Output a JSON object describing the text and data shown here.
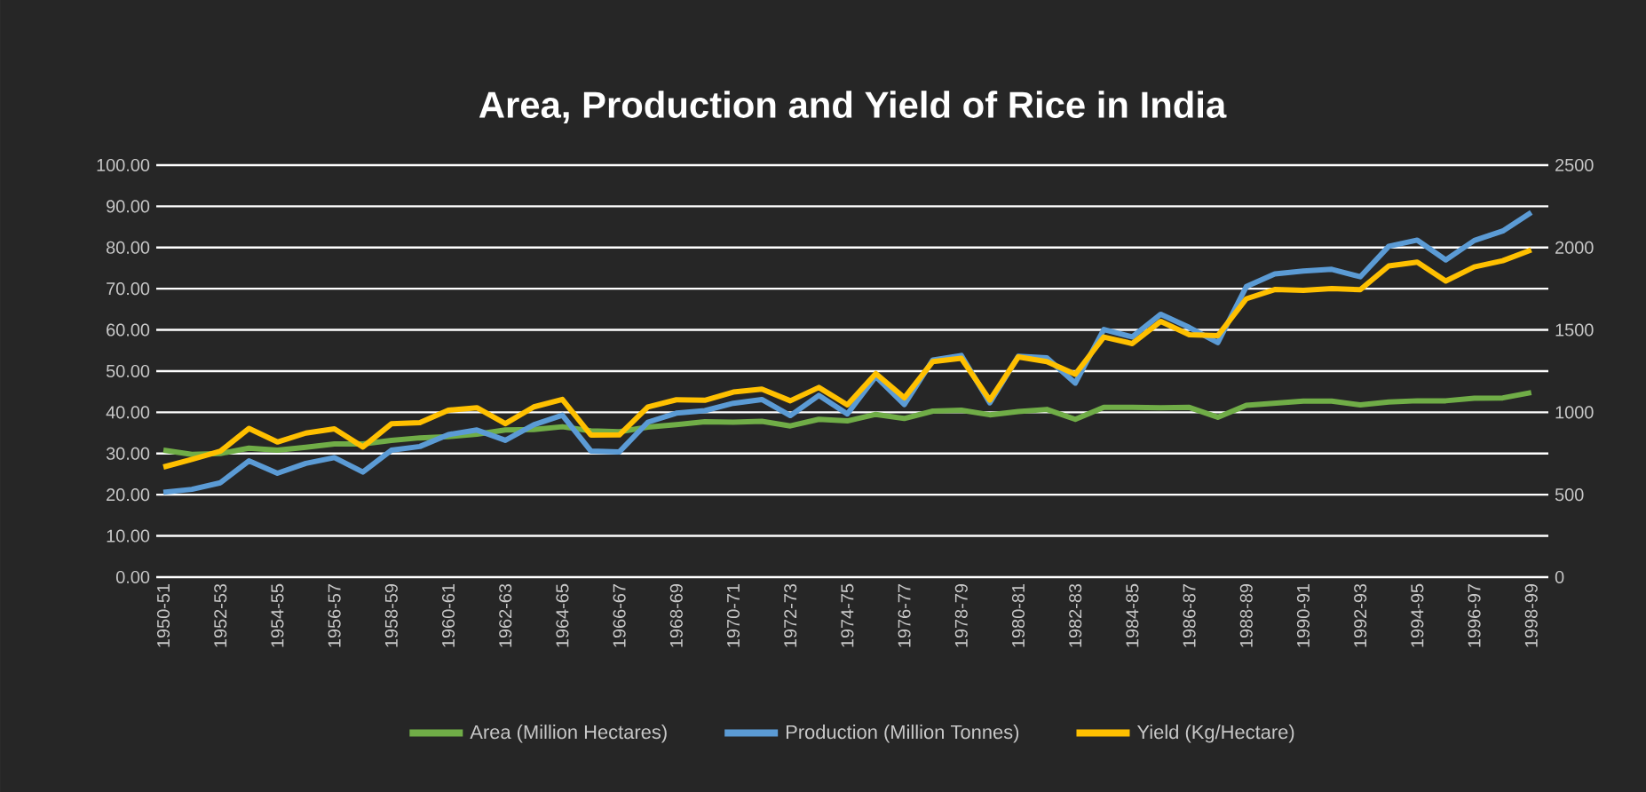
{
  "chart_data": {
    "type": "line",
    "title": "Area, Production and Yield of Rice in India",
    "categories": [
      "1950-51",
      null,
      "1952-53",
      null,
      "1954-55",
      null,
      "1956-57",
      null,
      "1958-59",
      null,
      "1960-61",
      null,
      "1962-63",
      null,
      "1964-65",
      null,
      "1966-67",
      null,
      "1968-69",
      null,
      "1970-71",
      null,
      "1972-73",
      null,
      "1974-75",
      null,
      "1976-77",
      null,
      "1978-79",
      null,
      "1980-81",
      null,
      "1982-83",
      null,
      "1984-85",
      null,
      "1986-87",
      null,
      "1988-89",
      null,
      "1990-91",
      null,
      "1992-93",
      null,
      "1994-95",
      null,
      "1996-97",
      null,
      "1998-99"
    ],
    "series": [
      {
        "name": "Area (Million Hectares)",
        "color": "#70ad47",
        "values": [
          30.8,
          29.8,
          30.0,
          31.3,
          30.8,
          31.5,
          32.3,
          32.3,
          33.2,
          33.8,
          34.1,
          34.7,
          35.7,
          35.8,
          36.5,
          35.5,
          35.3,
          36.4,
          37.0,
          37.7,
          37.6,
          37.8,
          36.7,
          38.3,
          37.9,
          39.5,
          38.5,
          40.3,
          40.5,
          39.4,
          40.2,
          40.7,
          38.3,
          41.2,
          41.2,
          41.1,
          41.2,
          38.8,
          41.7,
          42.2,
          42.7,
          42.7,
          41.8,
          42.5,
          42.8,
          42.8,
          43.4,
          43.5,
          44.8
        ]
      },
      {
        "name": "Production (Million Tonnes)",
        "color": "#5b9bd5",
        "values": [
          20.6,
          21.3,
          22.9,
          28.2,
          25.2,
          27.6,
          29.0,
          25.5,
          30.8,
          31.7,
          34.6,
          35.7,
          33.2,
          37.0,
          39.3,
          30.6,
          30.4,
          37.6,
          39.8,
          40.4,
          42.2,
          43.1,
          39.2,
          44.1,
          39.6,
          48.7,
          41.9,
          52.7,
          53.8,
          42.3,
          53.6,
          53.2,
          47.1,
          60.1,
          58.3,
          63.8,
          60.6,
          56.9,
          70.5,
          73.6,
          74.3,
          74.7,
          72.9,
          80.3,
          81.8,
          77.0,
          81.7,
          84.0,
          88.5
        ]
      },
      {
        "name": "Yield (Kg/Hectare)",
        "color": "#ffc000",
        "axis": "y2",
        "values": [
          668,
          714,
          764,
          902,
          820,
          874,
          900,
          790,
          930,
          937,
          1013,
          1028,
          931,
          1033,
          1078,
          862,
          863,
          1032,
          1076,
          1073,
          1123,
          1141,
          1070,
          1151,
          1045,
          1235,
          1088,
          1308,
          1328,
          1074,
          1336,
          1308,
          1231,
          1457,
          1417,
          1552,
          1471,
          1465,
          1689,
          1745,
          1740,
          1751,
          1744,
          1888,
          1911,
          1797,
          1882,
          1920,
          1985
        ]
      }
    ],
    "ylim": [
      0,
      100
    ],
    "yticks": [
      {
        "value": 0,
        "label": "0.00"
      },
      {
        "value": 10,
        "label": "10.00"
      },
      {
        "value": 20,
        "label": "20.00"
      },
      {
        "value": 30,
        "label": "30.00"
      },
      {
        "value": 40,
        "label": "40.00"
      },
      {
        "value": 50,
        "label": "50.00"
      },
      {
        "value": 60,
        "label": "60.00"
      },
      {
        "value": 70,
        "label": "70.00"
      },
      {
        "value": 80,
        "label": "80.00"
      },
      {
        "value": 90,
        "label": "90.00"
      },
      {
        "value": 100,
        "label": "100.00"
      }
    ],
    "y2lim": [
      0,
      2500
    ],
    "y2ticks": [
      0,
      500,
      1000,
      1500,
      2000,
      2500
    ],
    "grid": "y",
    "legend": "bottom",
    "marker": "none",
    "line_style": "solid"
  }
}
